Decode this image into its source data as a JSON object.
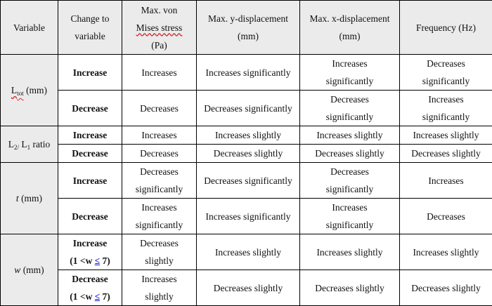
{
  "header": {
    "variable": "Variable",
    "change": [
      "Change to",
      "variable"
    ],
    "stress": [
      "Max. von",
      "Mises stress",
      "(Pa)"
    ],
    "ydisp": [
      "Max. y-displacement",
      "(mm)"
    ],
    "xdisp": [
      "Max. x-displacement",
      "(mm)"
    ],
    "freq": "Frequency (Hz)"
  },
  "groups": {
    "ltot": {
      "label_main": "L",
      "label_sub": "tot",
      "label_unit": " (mm)",
      "inc": {
        "change": "Increase",
        "stress": "Increases",
        "ydisp": "Increases significantly",
        "xdisp": [
          "Increases",
          "significantly"
        ],
        "freq": [
          "Decreases",
          "significantly"
        ]
      },
      "dec": {
        "change": "Decrease",
        "stress": "Decreases",
        "ydisp": "Decreases significantly",
        "xdisp": [
          "Decreases",
          "significantly"
        ],
        "freq": [
          "Increases",
          "significantly"
        ]
      }
    },
    "ratio": {
      "l2": "L",
      "l2_sub": "2/",
      "l1": " L",
      "l1_sub": "1",
      "tail": " ratio",
      "inc": {
        "change": "Increase",
        "stress": "Increases",
        "ydisp": "Increases slightly",
        "xdisp": "Increases slightly",
        "freq": "Increases slightly"
      },
      "dec": {
        "change": "Decrease",
        "stress": "Decreases",
        "ydisp": "Decreases slightly",
        "xdisp": "Decreases slightly",
        "freq": "Decreases slightly"
      }
    },
    "t": {
      "label_var": "t",
      "label_unit": " (mm)",
      "inc": {
        "change": "Increase",
        "stress": [
          "Decreases",
          "significantly"
        ],
        "ydisp": "Decreases significantly",
        "xdisp": [
          "Decreases",
          "significantly"
        ],
        "freq": "Increases"
      },
      "dec": {
        "change": "Decrease",
        "stress": [
          "Increases",
          "significantly"
        ],
        "ydisp": "Increases significantly",
        "xdisp": [
          "Increases",
          "significantly"
        ],
        "freq": "Decreases"
      }
    },
    "w": {
      "label_var": "w",
      "label_unit": " (mm)",
      "range_pre": "(1 <w ",
      "range_le": "≤",
      "range_post": " 7)",
      "inc": {
        "change": "Increase",
        "stress": [
          "Decreases",
          "slightly"
        ],
        "ydisp": "Increases slightly",
        "xdisp": "Increases slightly",
        "freq": "Increases slightly"
      },
      "dec": {
        "change": "Decrease",
        "stress": [
          "Increases",
          "slightly"
        ],
        "ydisp": "Decreases slightly",
        "xdisp": "Decreases slightly",
        "freq": "Decreases slightly"
      }
    }
  }
}
